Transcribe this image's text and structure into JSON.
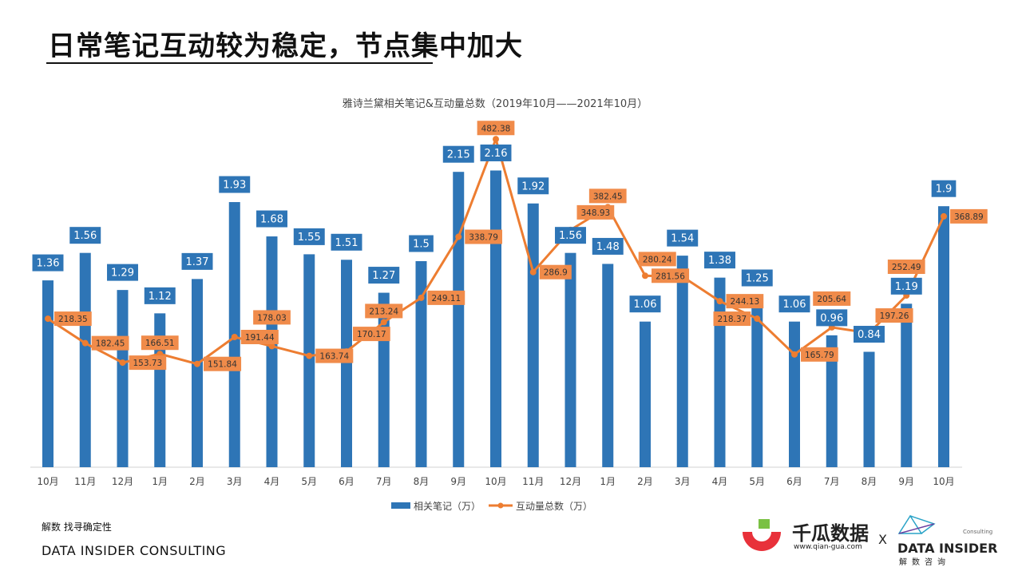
{
  "page_title": "日常笔记互动较为稳定，节点集中加大",
  "chart_data": {
    "type": "bar+line",
    "title": "雅诗兰黛相关笔记&互动量总数（2019年10月——2021年10月）",
    "categories": [
      "10月",
      "11月",
      "12月",
      "1月",
      "2月",
      "3月",
      "4月",
      "5月",
      "6月",
      "7月",
      "8月",
      "9月",
      "10月",
      "11月",
      "12月",
      "1月",
      "2月",
      "3月",
      "4月",
      "5月",
      "6月",
      "7月",
      "8月",
      "9月",
      "10月"
    ],
    "series": [
      {
        "name": "相关笔记（万）",
        "type": "bar",
        "axis": "primary",
        "color": "#2e75b6",
        "values": [
          1.36,
          1.56,
          1.29,
          1.12,
          1.37,
          1.93,
          1.68,
          1.55,
          1.51,
          1.27,
          1.5,
          2.15,
          2.16,
          1.92,
          1.56,
          1.48,
          1.06,
          1.54,
          1.38,
          1.25,
          1.06,
          0.96,
          0.84,
          1.19,
          1.9
        ]
      },
      {
        "name": "互动量总数（万）",
        "type": "line",
        "axis": "secondary",
        "color": "#ed7d31",
        "values": [
          218.35,
          182.45,
          153.73,
          166.51,
          151.84,
          191.44,
          178.03,
          163.74,
          170.17,
          213.24,
          249.11,
          338.79,
          482.38,
          286.9,
          348.93,
          382.45,
          281.56,
          280.24,
          244.13,
          218.37,
          165.79,
          205.64,
          197.26,
          252.49,
          368.89
        ]
      }
    ],
    "ylim_primary": [
      0,
      2.5
    ],
    "ylim_secondary": [
      0,
      505
    ],
    "grid": false,
    "legend": "bottom"
  },
  "footer": {
    "slogan": "解数 找寻确定性",
    "company": "DATA INSIDER CONSULTING"
  },
  "logos": {
    "qiangua_name": "千瓜数据",
    "qiangua_url": "www.qian-gua.com",
    "x": "X",
    "di_name": "DATA INSIDER",
    "di_cn": "解数咨询",
    "di_consulting": "Consulting"
  }
}
